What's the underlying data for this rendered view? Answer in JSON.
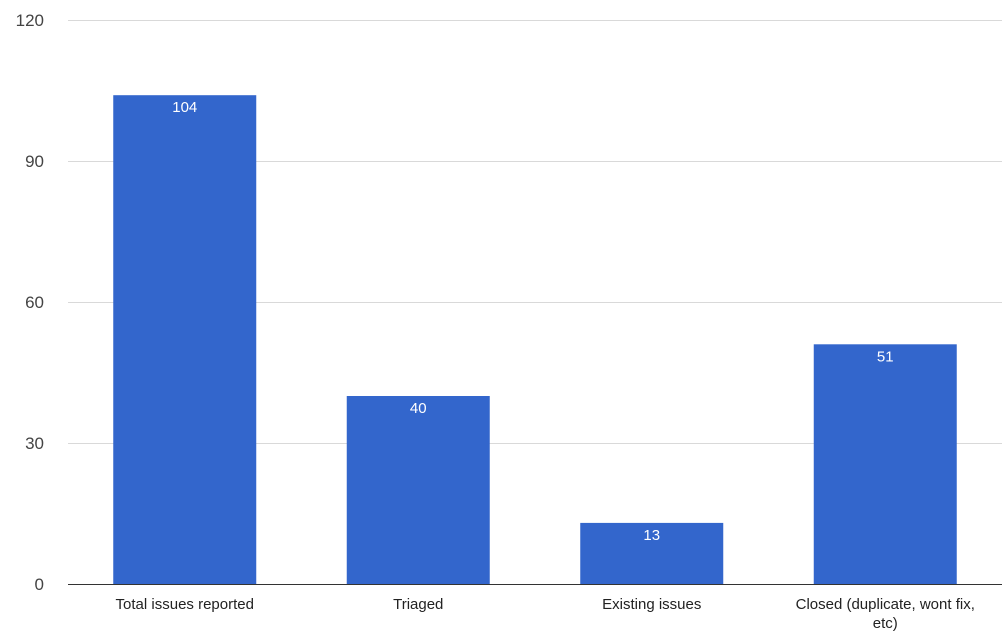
{
  "chart_data": {
    "type": "bar",
    "title": "",
    "xlabel": "",
    "ylabel": "",
    "categories": [
      "Total issues reported",
      "Triaged",
      "Existing issues",
      "Closed (duplicate, wont fix, etc)"
    ],
    "values": [
      104,
      40,
      13,
      51
    ],
    "data_labels": [
      "104",
      "40",
      "13",
      "51"
    ],
    "ylim": [
      0,
      120
    ],
    "yticks": [
      0,
      30,
      60,
      90,
      120
    ],
    "grid": true,
    "legend": "none",
    "colors": {
      "bar": "#3366cc",
      "grid": "#d9d9d9",
      "axis": "#333333"
    }
  }
}
